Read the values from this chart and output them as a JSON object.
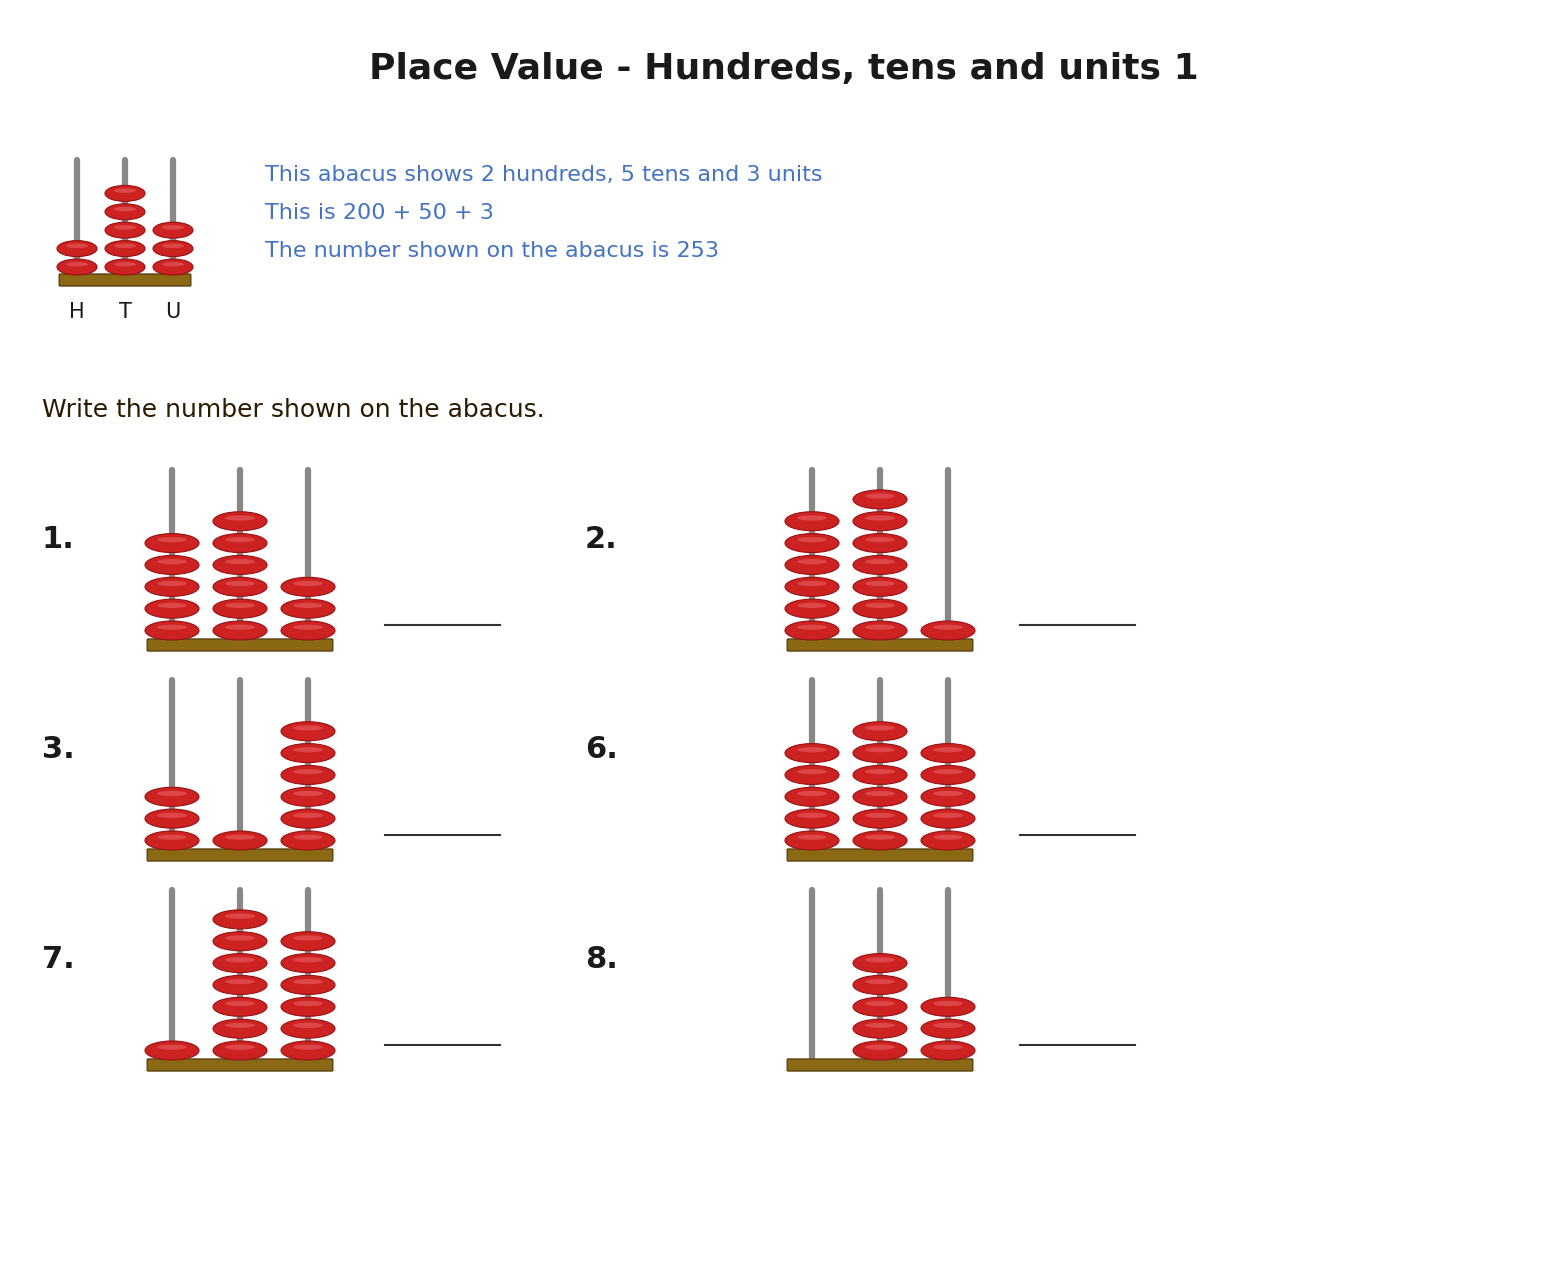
{
  "title": "Place Value - Hundreds, tens and units 1",
  "title_fontsize": 26,
  "title_color": "#1a1a1a",
  "background_color": "#ffffff",
  "instruction_text": "Write the number shown on the abacus.",
  "example_text": [
    "This abacus shows 2 hundreds, 5 tens and 3 units",
    "This is 200 + 50 + 3",
    "The number shown on the abacus is 253"
  ],
  "example_text_color": "#4472c4",
  "example_beads": [
    2,
    5,
    3
  ],
  "problems": [
    {
      "num": "1.",
      "beads": [
        5,
        6,
        3
      ]
    },
    {
      "num": "2.",
      "beads": [
        6,
        7,
        1
      ]
    },
    {
      "num": "3.",
      "beads": [
        3,
        1,
        6
      ]
    },
    {
      "num": "6.",
      "beads": [
        5,
        6,
        5
      ]
    },
    {
      "num": "7.",
      "beads": [
        1,
        7,
        6
      ]
    },
    {
      "num": "8.",
      "beads": [
        0,
        5,
        3
      ]
    }
  ],
  "bead_color": "#cc2222",
  "bead_highlight": "#ee6666",
  "rod_color": "#888888",
  "base_color": "#8B6914",
  "base_edge_color": "#5a4010",
  "label_color": "#1a1a1a",
  "line_color": "#333333"
}
